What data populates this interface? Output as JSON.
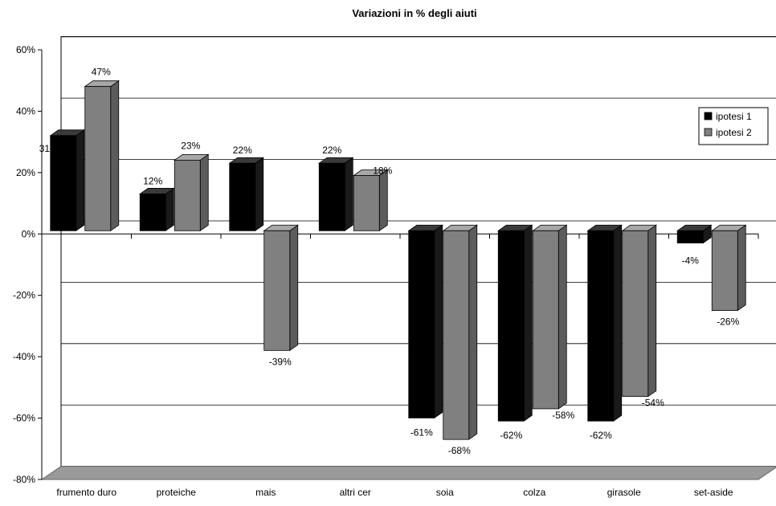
{
  "chart_data": {
    "type": "bar",
    "title": "Variazioni in % degli aiuti",
    "categories": [
      "frumento duro",
      "proteiche",
      "mais",
      "altri cer",
      "soia",
      "colza",
      "girasole",
      "set-aside"
    ],
    "series": [
      {
        "name": "ipotesi 1",
        "values": [
          31,
          12,
          22,
          22,
          -61,
          -62,
          -62,
          -4
        ],
        "labels": [
          "31%",
          "12%",
          "22%",
          "22%",
          "-61%",
          "-62%",
          "-62%",
          "-4%"
        ]
      },
      {
        "name": "ipotesi 2",
        "values": [
          47,
          23,
          -39,
          18,
          -68,
          -58,
          -54,
          -26
        ],
        "labels": [
          "47%",
          "23%",
          "-39%",
          "18%",
          "-68%",
          "-58%",
          "-54%",
          "-26%"
        ]
      }
    ],
    "yticks": [
      "60%",
      "40%",
      "20%",
      "0%",
      "-20%",
      "-40%",
      "-60%",
      "-80%"
    ],
    "ylim": [
      -80,
      60
    ],
    "grid": true,
    "legend_position": "right",
    "colors": {
      "ipotesi 1": "#000000",
      "ipotesi 2": "#808080"
    }
  }
}
